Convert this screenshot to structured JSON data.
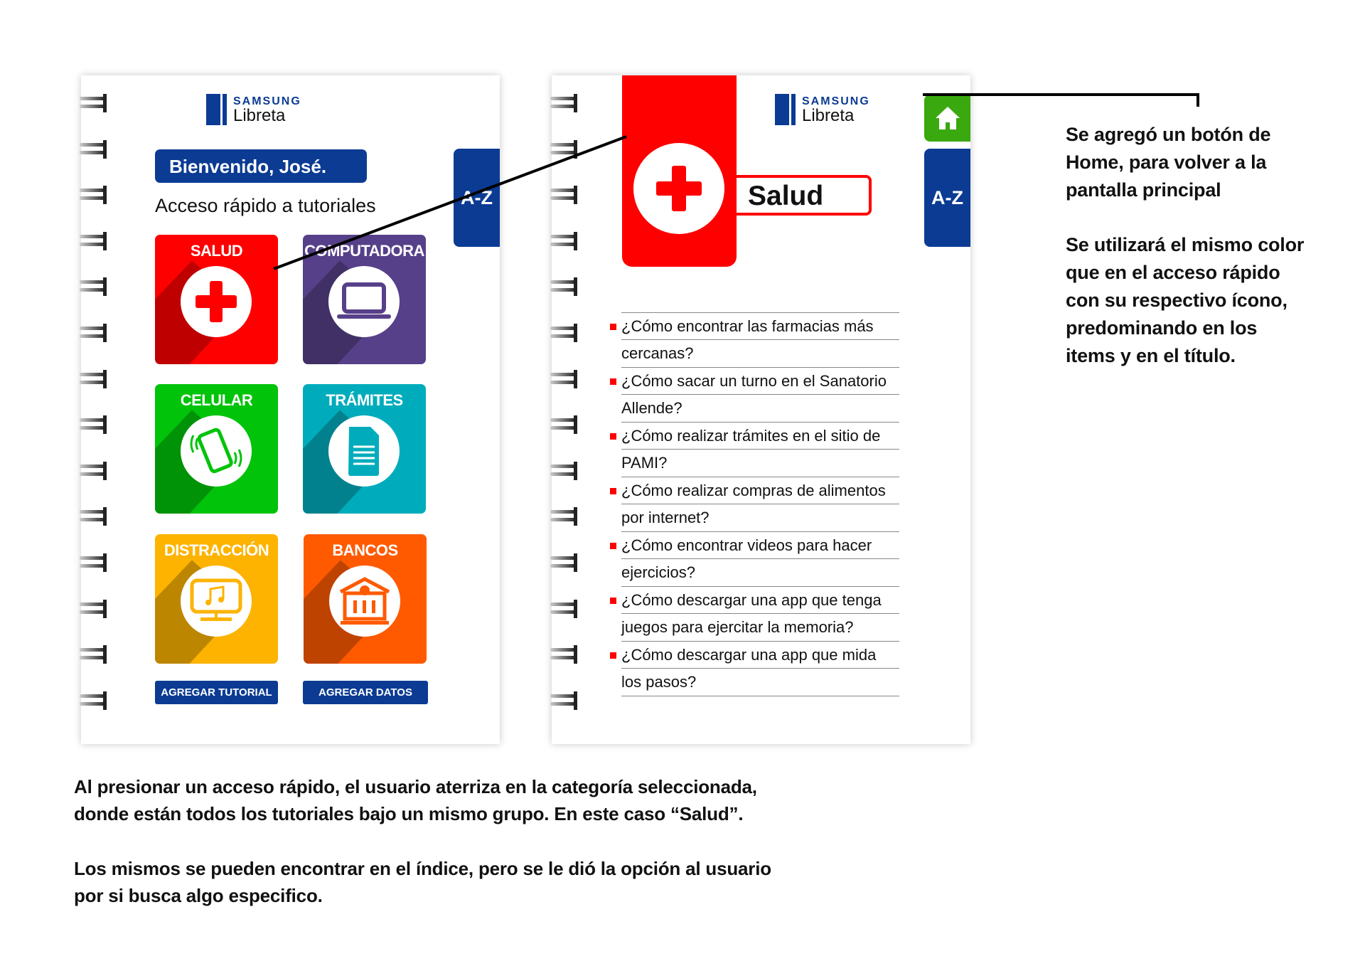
{
  "left_page": {
    "logo": {
      "brand": "SAMSUNG",
      "product": "Libreta"
    },
    "welcome": "Bienvenido, José.",
    "subtitle": "Acceso rápido a tutoriales",
    "az_tab": "A-Z",
    "tiles": [
      {
        "label": "SALUD",
        "icon": "medical-cross-icon",
        "color": "#fe0000"
      },
      {
        "label": "COMPUTADORA",
        "icon": "laptop-icon",
        "color": "#564089"
      },
      {
        "label": "CELULAR",
        "icon": "smartphone-icon",
        "color": "#00c30a"
      },
      {
        "label": "TRÁMITES",
        "icon": "document-icon",
        "color": "#00acbc"
      },
      {
        "label": "DISTRACCIÓN",
        "icon": "tv-music-icon",
        "color": "#fdb300"
      },
      {
        "label": "BANCOS",
        "icon": "bank-icon",
        "color": "#ff5a00"
      }
    ],
    "buttons": {
      "add_tutorial": "AGREGAR TUTORIAL",
      "add_data": "AGREGAR DATOS"
    }
  },
  "right_page": {
    "logo": {
      "brand": "SAMSUNG",
      "product": "Libreta"
    },
    "category_title": "Salud",
    "category_color": "#fe0000",
    "home_color": "#3aa80f",
    "az_tab": "A-Z",
    "items": [
      [
        "¿Cómo encontrar las farmacias más",
        "cercanas?"
      ],
      [
        "¿Cómo sacar un turno en el Sanatorio",
        "Allende?"
      ],
      [
        "¿Cómo realizar trámites en el sitio de",
        "PAMI?"
      ],
      [
        "¿Cómo realizar compras de alimentos",
        "por internet?"
      ],
      [
        "¿Cómo encontrar videos para hacer",
        "ejercicios?"
      ],
      [
        "¿Cómo descargar una app que tenga",
        "juegos para ejercitar la memoria?"
      ],
      [
        "¿Cómo descargar una app que mida",
        "los pasos?"
      ]
    ]
  },
  "annotations": {
    "home_note": [
      "Se agregó un botón de",
      "Home, para volver a la",
      "pantalla principal"
    ],
    "color_note": [
      "Se utilizará el mismo color",
      "que en el acceso rápido",
      "con su respectivo ícono,",
      "predominando en los",
      "items y en el título."
    ],
    "bottom_1": [
      "Al presionar un acceso rápido, el usuario aterriza en la categoría seleccionada,",
      "donde están todos los tutoriales bajo un mismo grupo. En este caso “Salud”."
    ],
    "bottom_2": [
      "Los mismos se pueden encontrar en el índice, pero se le dió la opción al usuario",
      "por si busca algo especifico."
    ]
  },
  "brand_blue": "#0b3b93"
}
